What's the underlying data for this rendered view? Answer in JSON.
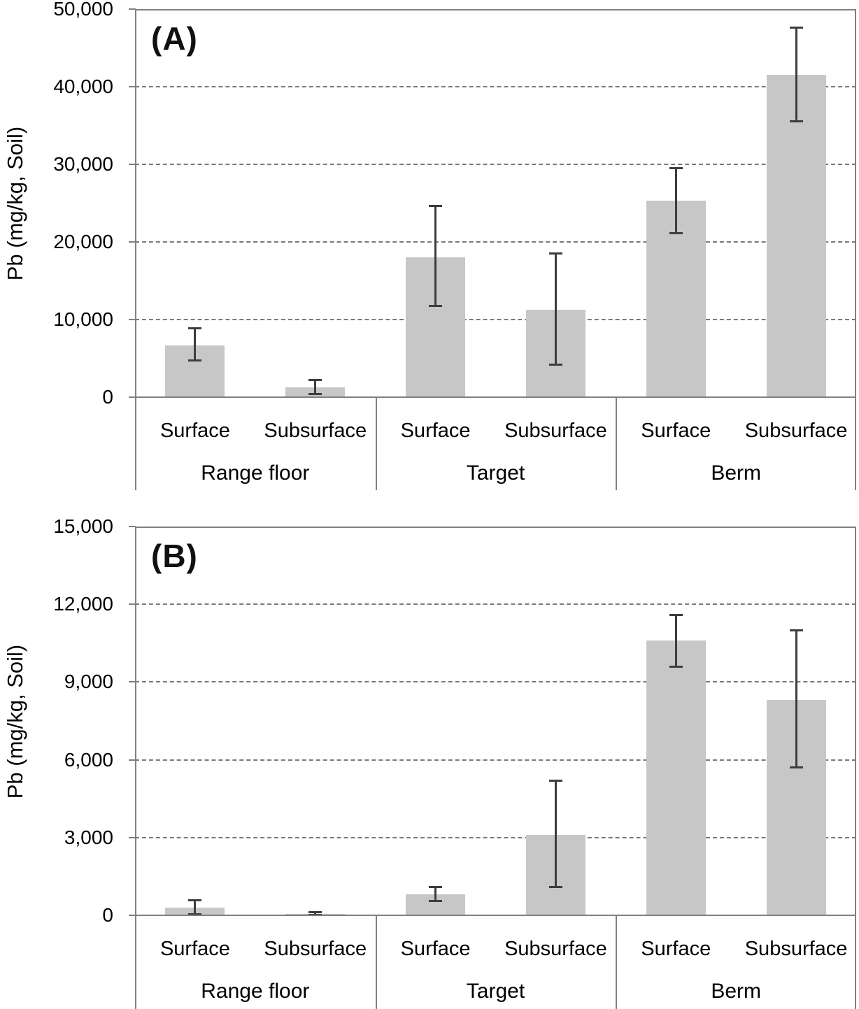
{
  "figure": {
    "background": "#ffffff",
    "bar_color": "#c7c7c7",
    "error_bar_color": "#3d3d3d",
    "axis_line_color": "#808080",
    "gridline_color": "#7a7a7a",
    "text_color": "#000000"
  },
  "chart_data": [
    {
      "type": "bar",
      "panel_label": "(A)",
      "ylabel": "Pb (mg/kg, Soil)",
      "ylim": [
        0,
        50000
      ],
      "ytick_interval": 10000,
      "ytick_labels": [
        "0",
        "10,000",
        "20,000",
        "30,000",
        "40,000",
        "50,000"
      ],
      "grid": "horizontal-dashed",
      "legend": "none",
      "groups": [
        "Range floor",
        "Target",
        "Berm"
      ],
      "categories_per_group": [
        "Surface",
        "Subsurface"
      ],
      "series": [
        {
          "group": "Range floor",
          "category": "Surface",
          "value": 6700,
          "error_low": 4700,
          "error_high": 8900
        },
        {
          "group": "Range floor",
          "category": "Subsurface",
          "value": 1300,
          "error_low": 400,
          "error_high": 2200
        },
        {
          "group": "Target",
          "category": "Surface",
          "value": 18000,
          "error_low": 11800,
          "error_high": 24600
        },
        {
          "group": "Target",
          "category": "Subsurface",
          "value": 11300,
          "error_low": 4200,
          "error_high": 18500
        },
        {
          "group": "Berm",
          "category": "Surface",
          "value": 25300,
          "error_low": 21100,
          "error_high": 29500
        },
        {
          "group": "Berm",
          "category": "Subsurface",
          "value": 41500,
          "error_low": 35500,
          "error_high": 47600
        }
      ]
    },
    {
      "type": "bar",
      "panel_label": "(B)",
      "ylabel": "Pb (mg/kg, Soil)",
      "ylim": [
        0,
        15000
      ],
      "ytick_interval": 3000,
      "ytick_labels": [
        "0",
        "3,000",
        "6,000",
        "9,000",
        "12,000",
        "15,000"
      ],
      "grid": "horizontal-dashed",
      "legend": "none",
      "groups": [
        "Range floor",
        "Target",
        "Berm"
      ],
      "categories_per_group": [
        "Surface",
        "Subsurface"
      ],
      "series": [
        {
          "group": "Range floor",
          "category": "Surface",
          "value": 300,
          "error_low": 50,
          "error_high": 580
        },
        {
          "group": "Range floor",
          "category": "Subsurface",
          "value": 60,
          "error_low": 20,
          "error_high": 120
        },
        {
          "group": "Target",
          "category": "Surface",
          "value": 800,
          "error_low": 540,
          "error_high": 1100
        },
        {
          "group": "Target",
          "category": "Subsurface",
          "value": 3100,
          "error_low": 1100,
          "error_high": 5200
        },
        {
          "group": "Berm",
          "category": "Surface",
          "value": 10600,
          "error_low": 9600,
          "error_high": 11600
        },
        {
          "group": "Berm",
          "category": "Subsurface",
          "value": 8300,
          "error_low": 5700,
          "error_high": 11000
        }
      ]
    }
  ]
}
